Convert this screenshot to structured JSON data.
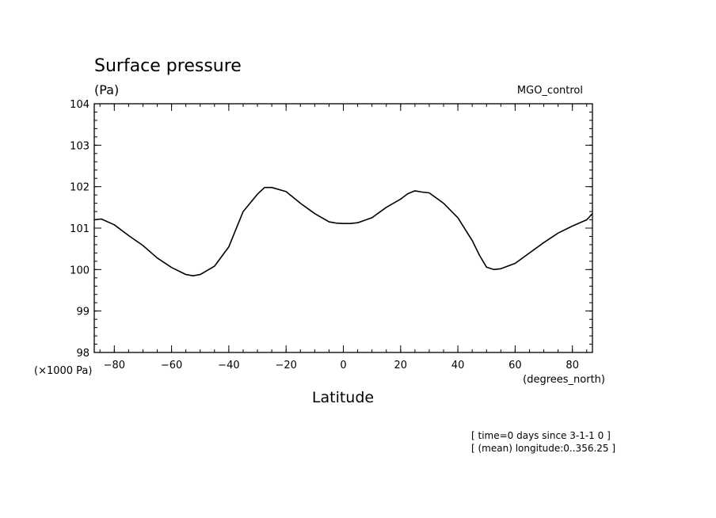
{
  "chart_data": {
    "type": "line",
    "title": "Surface pressure",
    "units_label": "(Pa)",
    "experiment": "MGO_control",
    "xlabel": "Latitude",
    "x_unit": "(degrees_north)",
    "y_scale_note": "(×1000 Pa)",
    "xlim": [
      -87,
      87
    ],
    "ylim": [
      98,
      104
    ],
    "x_ticks": [
      -80,
      -60,
      -40,
      -20,
      0,
      20,
      40,
      60,
      80
    ],
    "x_tick_labels": [
      "−80",
      "−60",
      "−40",
      "−20",
      "0",
      "20",
      "40",
      "60",
      "80"
    ],
    "y_ticks": [
      98,
      99,
      100,
      101,
      102,
      103,
      104
    ],
    "y_tick_labels": [
      "98",
      "99",
      "100",
      "101",
      "102",
      "103",
      "104"
    ],
    "x_minor_step": 5,
    "y_minor_step": 0.2,
    "grid": false,
    "series": [
      {
        "color": "#000000",
        "x": [
          -87,
          -84.5,
          -80,
          -75,
          -70,
          -65,
          -60,
          -55,
          -52.5,
          -50,
          -45,
          -40,
          -35,
          -30,
          -27.5,
          -25,
          -20,
          -15,
          -10,
          -5,
          -2.5,
          0,
          2.5,
          5,
          10,
          15,
          20,
          22.5,
          25,
          27.5,
          30,
          35,
          40,
          45,
          47.5,
          50,
          52.5,
          55,
          60,
          65,
          70,
          75,
          80,
          85,
          87
        ],
        "values": [
          101.2,
          101.22,
          101.08,
          100.82,
          100.58,
          100.28,
          100.05,
          99.88,
          99.85,
          99.88,
          100.08,
          100.55,
          101.4,
          101.82,
          101.98,
          101.98,
          101.88,
          101.6,
          101.35,
          101.15,
          101.12,
          101.11,
          101.11,
          101.13,
          101.25,
          101.5,
          101.7,
          101.83,
          101.9,
          101.87,
          101.85,
          101.6,
          101.25,
          100.7,
          100.35,
          100.06,
          100.0,
          100.02,
          100.15,
          100.4,
          100.65,
          100.88,
          101.05,
          101.2,
          101.35
        ]
      }
    ]
  },
  "notes": [
    "[ time=0 days since 3-1-1 0 ]",
    "[ (mean) longitude:0..356.25 ]"
  ]
}
